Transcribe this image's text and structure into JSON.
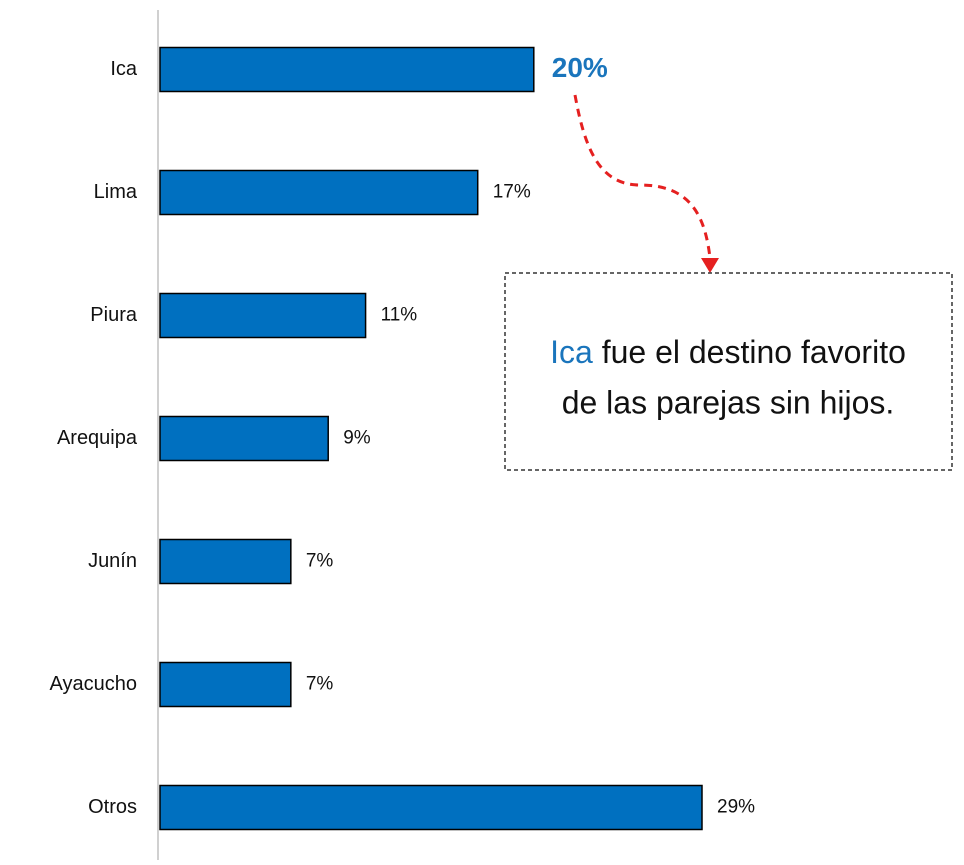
{
  "chart_data": {
    "type": "bar",
    "orientation": "horizontal",
    "categories": [
      "Ica",
      "Lima",
      "Piura",
      "Arequipa",
      "Junín",
      "Ayacucho",
      "Otros"
    ],
    "values": [
      20,
      17,
      11,
      9,
      7,
      7,
      29
    ],
    "value_labels": [
      "20%",
      "17%",
      "11%",
      "9%",
      "7%",
      "7%",
      "29%"
    ],
    "color": "#0070c0",
    "annotation": {
      "highlight": "Ica",
      "lines": [
        "fue el destino favorito",
        "de las parejas sin hijos."
      ]
    }
  }
}
